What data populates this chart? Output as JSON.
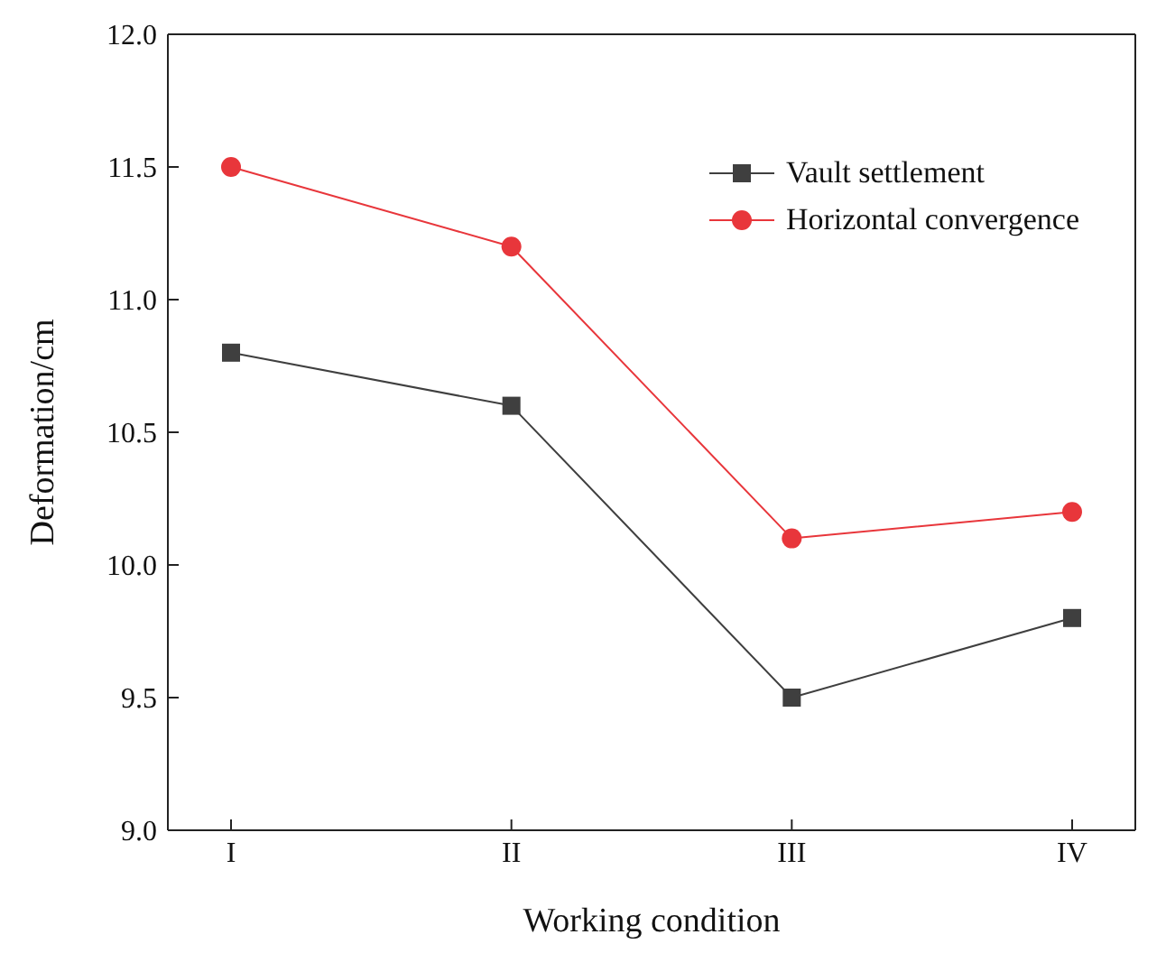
{
  "chart_data": {
    "type": "line",
    "xlabel": "Working condition",
    "ylabel": "Deformation/cm",
    "categories": [
      "I",
      "II",
      "III",
      "IV"
    ],
    "series": [
      {
        "name": "Vault settlement",
        "color": "#3f3f3f",
        "marker": "square",
        "values": [
          10.8,
          10.6,
          9.5,
          9.8
        ]
      },
      {
        "name": "Horizontal convergence",
        "color": "#e8363b",
        "marker": "circle",
        "values": [
          11.5,
          11.2,
          10.1,
          10.2
        ]
      }
    ],
    "ylim": [
      9,
      12
    ],
    "yticks": [
      {
        "value": 9,
        "label": "9.0"
      },
      {
        "value": 9.5,
        "label": "9.5"
      },
      {
        "value": 10,
        "label": "10.0"
      },
      {
        "value": 10.5,
        "label": "10.5"
      },
      {
        "value": 11,
        "label": "11.0"
      },
      {
        "value": 11.5,
        "label": "11.5"
      },
      {
        "value": 12,
        "label": "12.0"
      }
    ],
    "grid": false,
    "legend": "top right"
  }
}
